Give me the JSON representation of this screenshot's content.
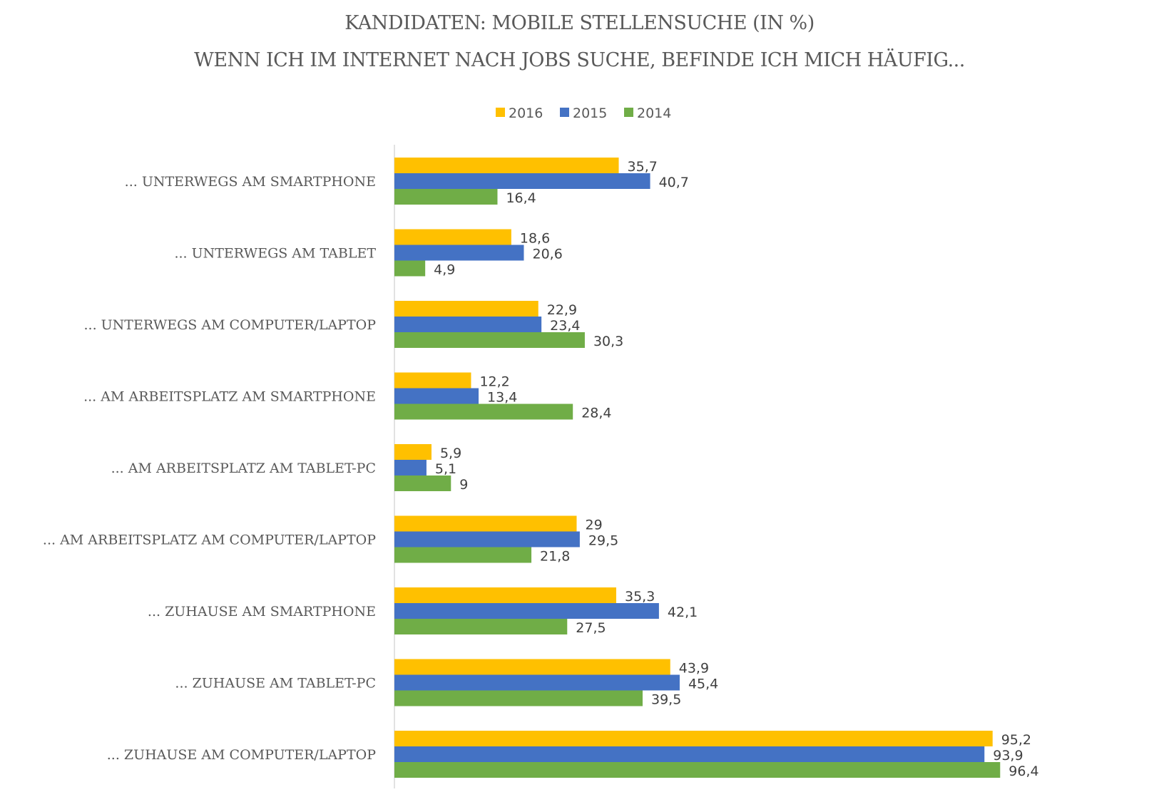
{
  "chart_data": {
    "type": "bar",
    "orientation": "horizontal",
    "title": "KANDIDATEN: MOBILE STELLENSUCHE (IN %)",
    "subtitle": "WENN ICH IM INTERNET NACH JOBS SUCHE, BEFINDE ICH MICH HÄUFIG...",
    "xlabel": "",
    "ylabel": "",
    "xlim": [
      0,
      100
    ],
    "grid": false,
    "legend_position": "top",
    "categories": [
      "... UNTERWEGS AM SMARTPHONE",
      "... UNTERWEGS AM TABLET",
      "... UNTERWEGS AM COMPUTER/LAPTOP",
      "... AM ARBEITSPLATZ AM SMARTPHONE",
      "... AM ARBEITSPLATZ AM TABLET-PC",
      "... AM ARBEITSPLATZ AM COMPUTER/LAPTOP",
      "... ZUHAUSE AM SMARTPHONE",
      "... ZUHAUSE AM TABLET-PC",
      "... ZUHAUSE AM COMPUTER/LAPTOP"
    ],
    "series": [
      {
        "name": "2016",
        "color": "#FFC000",
        "values": [
          35.7,
          18.6,
          22.9,
          12.2,
          5.9,
          29,
          35.3,
          43.9,
          95.2
        ]
      },
      {
        "name": "2015",
        "color": "#4472C4",
        "values": [
          40.7,
          20.6,
          23.4,
          13.4,
          5.1,
          29.5,
          42.1,
          45.4,
          93.9
        ]
      },
      {
        "name": "2014",
        "color": "#70AD47",
        "values": [
          16.4,
          4.9,
          30.3,
          28.4,
          9,
          21.8,
          27.5,
          39.5,
          96.4
        ]
      }
    ]
  }
}
